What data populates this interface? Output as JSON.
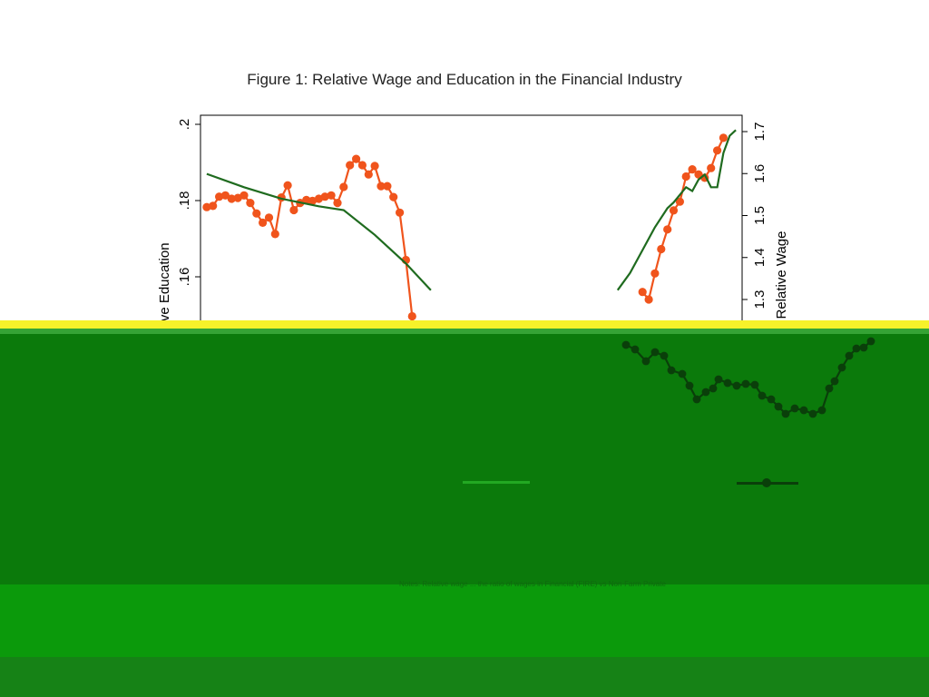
{
  "figure": {
    "title": "Figure 1: Relative Wage and Education in the Financial Industry"
  },
  "colors": {
    "wage_series": "#f0541c",
    "education_series": "#1f6b1f",
    "axis": "#000000",
    "glitch_yellow": "#f6f22a",
    "glitch_dark_green": "#0b7a0b",
    "glitch_mid_green": "#0b9a0b"
  },
  "chart_data": {
    "type": "line",
    "title": "Figure 1: Relative Wage and Education in the Financial Industry",
    "y_left": {
      "label": "Relative Education",
      "ticks": [
        ".16",
        ".18",
        ".2"
      ],
      "tick_values": [
        0.16,
        0.18,
        0.2
      ],
      "range": [
        0.15,
        0.2
      ]
    },
    "y_right": {
      "label": "Relative Wage",
      "ticks": [
        "1.3",
        "1.4",
        "1.5",
        "1.6",
        "1.7"
      ],
      "tick_values": [
        1.3,
        1.4,
        1.5,
        1.6,
        1.7
      ],
      "range": [
        1.25,
        1.72
      ]
    },
    "series": [
      {
        "axis": "right",
        "marker": "circle",
        "points": [
          [
            0,
            1.52
          ],
          [
            1,
            1.523
          ],
          [
            2,
            1.545
          ],
          [
            3,
            1.548
          ],
          [
            4,
            1.54
          ],
          [
            5,
            1.542
          ],
          [
            6,
            1.548
          ],
          [
            7,
            1.53
          ],
          [
            8,
            1.505
          ],
          [
            9,
            1.483
          ],
          [
            10,
            1.495
          ],
          [
            11,
            1.456
          ],
          [
            12,
            1.543
          ],
          [
            13,
            1.572
          ],
          [
            14,
            1.513
          ],
          [
            15,
            1.53
          ],
          [
            16,
            1.537
          ],
          [
            17,
            1.535
          ],
          [
            18,
            1.54
          ],
          [
            19,
            1.545
          ],
          [
            20,
            1.548
          ],
          [
            21,
            1.53
          ],
          [
            22,
            1.568
          ],
          [
            23,
            1.62
          ],
          [
            24,
            1.635
          ],
          [
            25,
            1.62
          ],
          [
            26,
            1.598
          ],
          [
            27,
            1.618
          ],
          [
            28,
            1.57
          ],
          [
            29,
            1.57
          ],
          [
            30,
            1.544
          ],
          [
            31,
            1.507
          ],
          [
            32,
            1.394
          ],
          [
            33,
            1.26
          ],
          [
            70,
            1.318
          ],
          [
            71,
            1.3
          ],
          [
            72,
            1.362
          ],
          [
            73,
            1.42
          ],
          [
            74,
            1.467
          ],
          [
            75,
            1.512
          ],
          [
            76,
            1.533
          ],
          [
            77,
            1.593
          ],
          [
            78,
            1.61
          ],
          [
            79,
            1.598
          ],
          [
            80,
            1.59
          ],
          [
            81,
            1.613
          ],
          [
            82,
            1.655
          ],
          [
            83,
            1.685
          ]
        ]
      },
      {
        "axis": "left",
        "marker": "none",
        "points": [
          [
            0,
            0.187
          ],
          [
            6,
            0.1835
          ],
          [
            12,
            0.1805
          ],
          [
            18,
            0.1785
          ],
          [
            22,
            0.1775
          ],
          [
            27,
            0.171
          ],
          [
            32,
            0.1635
          ],
          [
            36,
            0.1565
          ],
          [
            66,
            0.1565
          ],
          [
            68,
            0.161
          ],
          [
            70,
            0.167
          ],
          [
            72,
            0.173
          ],
          [
            74,
            0.178
          ],
          [
            75,
            0.1795
          ],
          [
            77,
            0.1835
          ],
          [
            78,
            0.1825
          ],
          [
            79,
            0.1855
          ],
          [
            80,
            0.1868
          ],
          [
            81,
            0.1835
          ],
          [
            82,
            0.1835
          ],
          [
            83,
            0.1925
          ],
          [
            84,
            0.197
          ],
          [
            85,
            0.1985
          ]
        ]
      }
    ],
    "x_range": [
      -1,
      86
    ],
    "grid": false,
    "legend": "none"
  },
  "caption": {
    "fragment": "Notes: Relative wage ... the ratio of wages in Financial (FIRE) vs Non-Farm Private"
  }
}
